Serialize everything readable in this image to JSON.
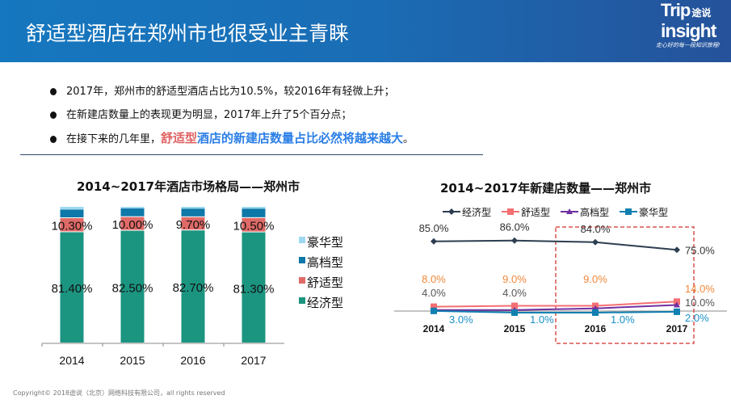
{
  "header": {
    "title": "舒适型酒店在郑州市也很受业主青睐"
  },
  "logo": {
    "trip": "Trip",
    "cn": "途说",
    "insight": "insight",
    "tagline": "走心好的每一段知识旅程!"
  },
  "bullets": [
    {
      "text": "2017年，郑州市的舒适型酒店占比为10.5%，较2016年有轻微上升；"
    },
    {
      "text": "在新建店数量上的表现更为明显，2017年上升了5个百分点；"
    },
    {
      "prefix": "在接下来的几年里，",
      "highlight_red": "舒适型",
      "highlight_blue": "酒店的新建店数量占比必然将越来越大",
      "suffix": "。"
    }
  ],
  "colors": {
    "header": "#1a6db5",
    "economy_bar": "#1b9480",
    "comfort_bar": "#e06a67",
    "highend_bar": "#0e78a8",
    "luxury_bar": "#9ed8f0",
    "economy_line": "#2c3e50",
    "comfort_line": "#f46f73",
    "highend_line": "#7030a0",
    "luxury_line": "#1180b0",
    "highlight_box": "#d9534f"
  },
  "chart_data": [
    {
      "type": "bar",
      "stacked": true,
      "title": "2014~2017年酒店市场格局——郑州市",
      "categories": [
        "2014",
        "2015",
        "2016",
        "2017"
      ],
      "legend_position": "right",
      "series": [
        {
          "name": "经济型",
          "values": [
            81.4,
            82.5,
            82.7,
            81.3
          ],
          "labels": [
            "81.40%",
            "82.50%",
            "82.70%",
            "81.30%"
          ]
        },
        {
          "name": "舒适型",
          "values": [
            10.3,
            10.0,
            9.7,
            10.5
          ],
          "labels": [
            "10.30%",
            "10.00%",
            "9.70%",
            "10.50%"
          ]
        },
        {
          "name": "高档型",
          "values": [
            6.3,
            6.3,
            6.3,
            6.9
          ]
        },
        {
          "name": "豪华型",
          "values": [
            2.0,
            1.2,
            1.3,
            1.3
          ]
        }
      ],
      "legend": [
        "豪华型",
        "高档型",
        "舒适型",
        "经济型"
      ]
    },
    {
      "type": "line",
      "title": "2014~2017年新建店数量——郑州市",
      "categories": [
        "2014",
        "2015",
        "2016",
        "2017"
      ],
      "legend_position": "top",
      "highlight": [
        "2016",
        "2017"
      ],
      "series": [
        {
          "name": "经济型",
          "values": [
            85,
            86,
            84,
            75
          ],
          "labels": [
            "85.0%",
            "86.0%",
            "84.0%",
            "75.0%"
          ]
        },
        {
          "name": "舒适型",
          "values": [
            8,
            9,
            9,
            14
          ],
          "labels": [
            "8.0%",
            "9.0%",
            "9.0%",
            "14.0%"
          ]
        },
        {
          "name": "高档型",
          "values": [
            4,
            4,
            6,
            10
          ],
          "labels": [
            "4.0%",
            "4.0%",
            "",
            "10.0%"
          ]
        },
        {
          "name": "豪华型",
          "values": [
            3,
            1,
            1,
            2
          ],
          "labels": [
            "3.0%",
            "1.0%",
            "1.0%",
            "2.0%"
          ]
        }
      ]
    }
  ],
  "footer": {
    "copyright": "Copyright© 2018途说（北京）网络科技有限公司，all rights reserved"
  }
}
